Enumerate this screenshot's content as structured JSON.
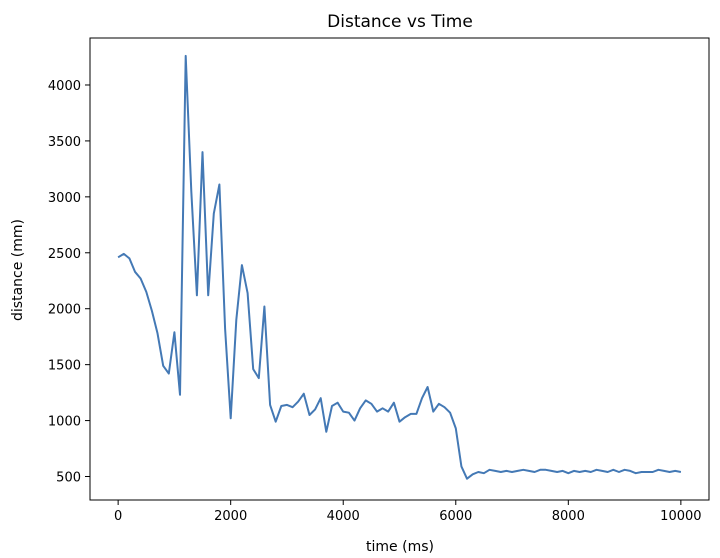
{
  "chart_data": {
    "type": "line",
    "title": "Distance vs Time",
    "xlabel": "time (ms)",
    "ylabel": "distance (mm)",
    "xlim": [
      -500,
      10500
    ],
    "ylim": [
      290,
      4420
    ],
    "xticks": [
      0,
      2000,
      4000,
      6000,
      8000,
      10000
    ],
    "yticks": [
      500,
      1000,
      1500,
      2000,
      2500,
      3000,
      3500,
      4000
    ],
    "grid": false,
    "line_color": "#4479b5",
    "series": [
      {
        "x": [
          0,
          100,
          200,
          300,
          400,
          500,
          600,
          700,
          800,
          900,
          1000,
          1100,
          1200,
          1300,
          1400,
          1500,
          1600,
          1700,
          1800,
          1900,
          2000,
          2100,
          2200,
          2300,
          2400,
          2500,
          2600,
          2700,
          2800,
          2900,
          3000,
          3100,
          3200,
          3300,
          3400,
          3500,
          3600,
          3700,
          3800,
          3900,
          4000,
          4100,
          4200,
          4300,
          4400,
          4500,
          4600,
          4700,
          4800,
          4900,
          5000,
          5100,
          5200,
          5300,
          5400,
          5500,
          5600,
          5700,
          5800,
          5900,
          6000,
          6100,
          6200,
          6300,
          6400,
          6500,
          6600,
          6700,
          6800,
          6900,
          7000,
          7100,
          7200,
          7300,
          7400,
          7500,
          7600,
          7700,
          7800,
          7900,
          8000,
          8100,
          8200,
          8300,
          8400,
          8500,
          8600,
          8700,
          8800,
          8900,
          9000,
          9100,
          9200,
          9300,
          9400,
          9500,
          9600,
          9700,
          9800,
          9900,
          10000
        ],
        "values": [
          2460,
          2490,
          2450,
          2330,
          2270,
          2150,
          1980,
          1780,
          1490,
          1420,
          1790,
          1230,
          4260,
          3050,
          2120,
          3400,
          2120,
          2850,
          3110,
          1820,
          1020,
          1900,
          2390,
          2140,
          1460,
          1380,
          2020,
          1140,
          990,
          1130,
          1140,
          1120,
          1170,
          1240,
          1050,
          1100,
          1200,
          900,
          1130,
          1160,
          1080,
          1070,
          1000,
          1110,
          1180,
          1150,
          1080,
          1110,
          1080,
          1160,
          990,
          1030,
          1060,
          1060,
          1200,
          1300,
          1080,
          1150,
          1120,
          1070,
          930,
          590,
          480,
          520,
          540,
          530,
          560,
          550,
          540,
          550,
          540,
          550,
          560,
          550,
          540,
          560,
          560,
          550,
          540,
          550,
          530,
          550,
          540,
          550,
          540,
          560,
          550,
          540,
          560,
          540,
          560,
          550,
          530,
          540,
          540,
          540,
          560,
          550,
          540,
          550,
          540
        ]
      }
    ]
  }
}
